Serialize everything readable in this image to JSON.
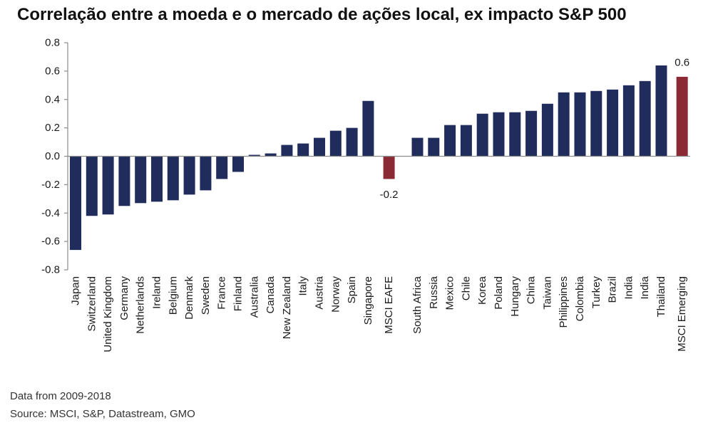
{
  "chart_data": {
    "type": "bar",
    "title": "Correlação entre a moeda e o mercado de ações local, ex impacto S&P 500",
    "xlabel": "",
    "ylabel": "",
    "ylim": [
      -0.8,
      0.8
    ],
    "ytick_labels": [
      "0.8",
      "0.6",
      "0.4",
      "0.2",
      "0.0",
      "-0.2",
      "-0.4",
      "-0.6",
      "-0.8"
    ],
    "grid": false,
    "legend": "none",
    "categories": [
      "Japan",
      "Switzerland",
      "United Kingdom",
      "Germany",
      "Netherlands",
      "Ireland",
      "Belgium",
      "Denmark",
      "Sweden",
      "France",
      "Finland",
      "Australia",
      "Canada",
      "New Zealand",
      "Italy",
      "Austria",
      "Norway",
      "Spain",
      "Singapore",
      "MSCI EAFE",
      "South Africa",
      "Russia",
      "Mexico",
      "Chile",
      "Korea",
      "Poland",
      "Hungary",
      "China",
      "Taiwan",
      "Philippines",
      "Colombia",
      "Turkey",
      "Brazil",
      "India",
      "India",
      "Thailand",
      "MSCI Emerging"
    ],
    "values": [
      -0.66,
      -0.42,
      -0.41,
      -0.35,
      -0.33,
      -0.32,
      -0.31,
      -0.27,
      -0.24,
      -0.16,
      -0.11,
      0.01,
      0.02,
      0.08,
      0.09,
      0.13,
      0.18,
      0.2,
      0.39,
      -0.16,
      0.13,
      0.13,
      0.22,
      0.22,
      0.3,
      0.31,
      0.31,
      0.32,
      0.37,
      0.45,
      0.45,
      0.46,
      0.47,
      0.5,
      0.53,
      0.64,
      0.56
    ],
    "highlighted": [
      "MSCI EAFE",
      "MSCI Emerging"
    ],
    "data_labels": [
      {
        "category": "MSCI EAFE",
        "text": "-0.2"
      },
      {
        "category": "MSCI Emerging",
        "text": "0.6"
      }
    ]
  },
  "notes": [
    "Data from 2009-2018",
    "Source: MSCI, S&P, Datastream, GMO"
  ],
  "colors": {
    "bar": "#1f2c5c",
    "highlight": "#8b2a35",
    "axis": "#8c8c8c",
    "text": "#1a1a1a"
  }
}
